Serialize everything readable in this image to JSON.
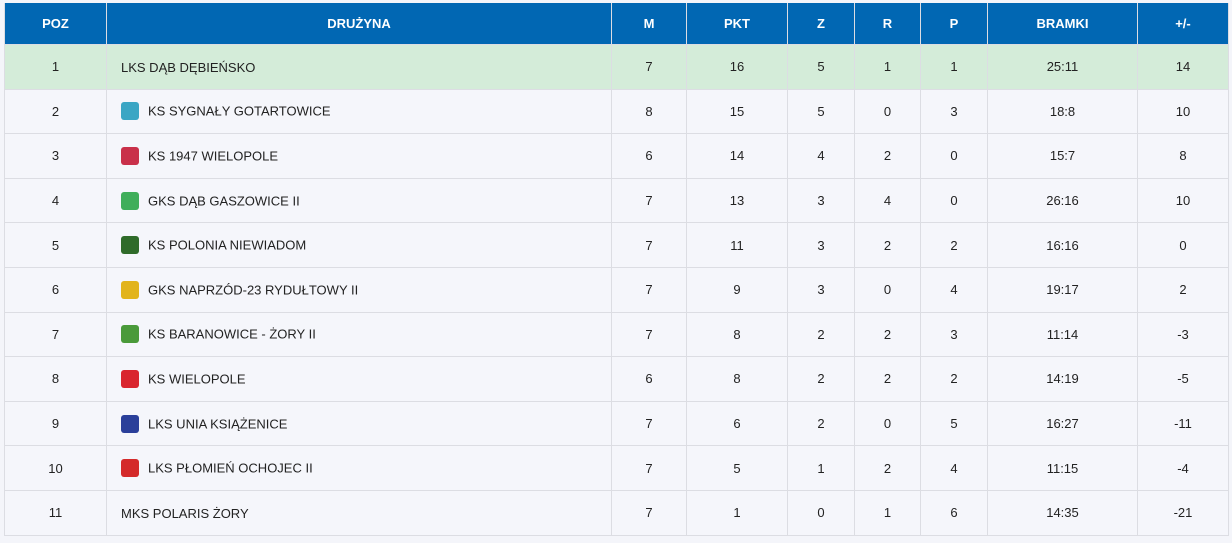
{
  "headers": [
    "POZ",
    "DRUŻYNA",
    "M",
    "PKT",
    "Z",
    "R",
    "P",
    "BRAMKI",
    "+/-"
  ],
  "rows": [
    {
      "poz": "1",
      "team": "LKS DĄB DĘBIEŃSKO",
      "m": "7",
      "pkt": "16",
      "z": "5",
      "r": "1",
      "p": "1",
      "bramki": "25:11",
      "diff": "14",
      "logo": null,
      "highlight": true
    },
    {
      "poz": "2",
      "team": "KS SYGNAŁY GOTARTOWICE",
      "m": "8",
      "pkt": "15",
      "z": "5",
      "r": "0",
      "p": "3",
      "bramki": "18:8",
      "diff": "10",
      "logo": "#3aa6c4"
    },
    {
      "poz": "3",
      "team": "KS 1947 WIELOPOLE",
      "m": "6",
      "pkt": "14",
      "z": "4",
      "r": "2",
      "p": "0",
      "bramki": "15:7",
      "diff": "8",
      "logo": "#c9304a"
    },
    {
      "poz": "4",
      "team": "GKS DĄB GASZOWICE II",
      "m": "7",
      "pkt": "13",
      "z": "3",
      "r": "4",
      "p": "0",
      "bramki": "26:16",
      "diff": "10",
      "logo": "#3fae5a"
    },
    {
      "poz": "5",
      "team": "KS POLONIA NIEWIADOM",
      "m": "7",
      "pkt": "11",
      "z": "3",
      "r": "2",
      "p": "2",
      "bramki": "16:16",
      "diff": "0",
      "logo": "#2f6b2a"
    },
    {
      "poz": "6",
      "team": "GKS NAPRZÓD-23 RYDUŁTOWY II",
      "m": "7",
      "pkt": "9",
      "z": "3",
      "r": "0",
      "p": "4",
      "bramki": "19:17",
      "diff": "2",
      "logo": "#e2b41c"
    },
    {
      "poz": "7",
      "team": "KS BARANOWICE - ŻORY II",
      "m": "7",
      "pkt": "8",
      "z": "2",
      "r": "2",
      "p": "3",
      "bramki": "11:14",
      "diff": "-3",
      "logo": "#4a9a3a"
    },
    {
      "poz": "8",
      "team": "KS WIELOPOLE",
      "m": "6",
      "pkt": "8",
      "z": "2",
      "r": "2",
      "p": "2",
      "bramki": "14:19",
      "diff": "-5",
      "logo": "#d9252e"
    },
    {
      "poz": "9",
      "team": "LKS UNIA KSIĄŻENICE",
      "m": "7",
      "pkt": "6",
      "z": "2",
      "r": "0",
      "p": "5",
      "bramki": "16:27",
      "diff": "-11",
      "logo": "#2a3f9a"
    },
    {
      "poz": "10",
      "team": "LKS PŁOMIEŃ OCHOJEC II",
      "m": "7",
      "pkt": "5",
      "z": "1",
      "r": "2",
      "p": "4",
      "bramki": "11:15",
      "diff": "-4",
      "logo": "#d42a2a"
    },
    {
      "poz": "11",
      "team": "MKS POLARIS ŻORY",
      "m": "7",
      "pkt": "1",
      "z": "0",
      "r": "1",
      "p": "6",
      "bramki": "14:35",
      "diff": "-21",
      "logo": null
    }
  ]
}
